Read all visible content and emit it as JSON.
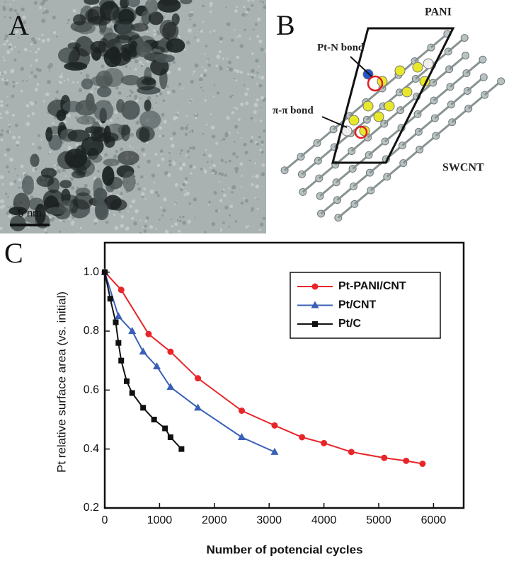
{
  "panels": {
    "a": {
      "label": "A",
      "scale_bar": "5 nm"
    },
    "b": {
      "label": "B",
      "annotations": [
        "PANI",
        "Pt-N bond",
        "π-π bond",
        "SWCNT"
      ]
    }
  },
  "chart_data": {
    "type": "line",
    "panel_label": "C",
    "x_label": "Number of potencial cycles",
    "y_label": "Pt relative surface area (vs. initial)",
    "xlim": [
      0,
      6550
    ],
    "ylim": [
      0.2,
      1.1
    ],
    "xticks": [
      0,
      1000,
      2000,
      3000,
      4000,
      5000,
      6000
    ],
    "yticks": [
      0.2,
      0.4,
      0.6,
      0.8,
      {
        "value": 1,
        "label": "1.0"
      }
    ],
    "legend": "upper right",
    "series": [
      {
        "name": "Pt-PANI/CNT",
        "color": "#e8262a",
        "marker": "circle",
        "x": [
          0,
          300,
          800,
          1200,
          1700,
          2500,
          3100,
          3600,
          4000,
          4500,
          5100,
          5500,
          5800
        ],
        "values": [
          1,
          0.94,
          0.79,
          0.73,
          0.64,
          0.53,
          0.48,
          0.44,
          0.42,
          0.39,
          0.37,
          0.36,
          0.35
        ]
      },
      {
        "name": "Pt/CNT",
        "color": "#3a5fb8",
        "marker": "triangle",
        "x": [
          0,
          250,
          500,
          700,
          950,
          1200,
          1700,
          2500,
          3100
        ],
        "values": [
          1,
          0.85,
          0.8,
          0.73,
          0.68,
          0.61,
          0.54,
          0.44,
          0.39
        ]
      },
      {
        "name": "Pt/C",
        "color": "#111111",
        "marker": "square",
        "x": [
          0,
          100,
          200,
          250,
          300,
          400,
          500,
          700,
          900,
          1100,
          1200,
          1400
        ],
        "values": [
          1,
          0.91,
          0.83,
          0.76,
          0.7,
          0.63,
          0.59,
          0.54,
          0.5,
          0.47,
          0.44,
          0.4
        ]
      }
    ]
  }
}
